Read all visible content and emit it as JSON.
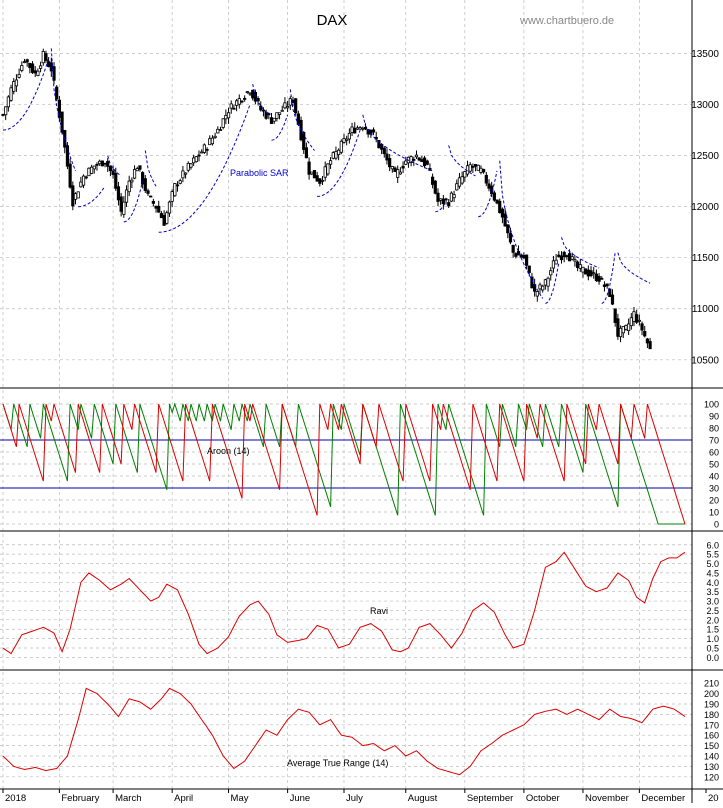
{
  "title": "DAX",
  "watermark": "www.chartbuero.de",
  "colors": {
    "price": "#000000",
    "sar": "#0000cc",
    "aroon_up": "#008000",
    "aroon_down": "#dd0000",
    "aroon_ref": "#0000aa",
    "line": "#dd0000",
    "grid": "#bbbbbb"
  },
  "x_axis": {
    "labels": [
      "2018",
      "February",
      "March",
      "April",
      "May",
      "June",
      "July",
      "August",
      "September",
      "October",
      "November",
      "December",
      "20"
    ]
  },
  "chart_data": [
    {
      "type": "candlestick",
      "name": "price",
      "ylim": [
        10400,
        13750
      ],
      "yticks": [
        10500,
        11000,
        11500,
        12000,
        12500,
        13000,
        13500
      ],
      "ytick_labels": [
        "10500",
        "11000",
        "11500",
        "12000",
        "12500",
        "13000",
        "13500"
      ],
      "annotation": "Parabolic SAR",
      "grid": true,
      "close_anchors": [
        [
          0,
          12900
        ],
        [
          3,
          13150
        ],
        [
          8,
          13450
        ],
        [
          12,
          13300
        ],
        [
          15,
          13480
        ],
        [
          18,
          13350
        ],
        [
          22,
          12750
        ],
        [
          26,
          12050
        ],
        [
          30,
          12300
        ],
        [
          34,
          12400
        ],
        [
          38,
          12450
        ],
        [
          41,
          12300
        ],
        [
          44,
          11950
        ],
        [
          47,
          12250
        ],
        [
          50,
          12400
        ],
        [
          54,
          12100
        ],
        [
          57,
          12000
        ],
        [
          60,
          11850
        ],
        [
          64,
          12200
        ],
        [
          68,
          12350
        ],
        [
          72,
          12480
        ],
        [
          76,
          12600
        ],
        [
          80,
          12750
        ],
        [
          84,
          12950
        ],
        [
          88,
          13050
        ],
        [
          92,
          13150
        ],
        [
          96,
          12950
        ],
        [
          100,
          12850
        ],
        [
          104,
          12950
        ],
        [
          108,
          13050
        ],
        [
          111,
          12700
        ],
        [
          114,
          12350
        ],
        [
          118,
          12250
        ],
        [
          122,
          12450
        ],
        [
          126,
          12600
        ],
        [
          130,
          12750
        ],
        [
          134,
          12800
        ],
        [
          138,
          12700
        ],
        [
          142,
          12500
        ],
        [
          146,
          12300
        ],
        [
          150,
          12450
        ],
        [
          154,
          12500
        ],
        [
          158,
          12400
        ],
        [
          162,
          12050
        ],
        [
          166,
          12050
        ],
        [
          170,
          12250
        ],
        [
          174,
          12400
        ],
        [
          178,
          12350
        ],
        [
          182,
          12150
        ],
        [
          186,
          11900
        ],
        [
          190,
          11550
        ],
        [
          194,
          11500
        ],
        [
          198,
          11150
        ],
        [
          202,
          11250
        ],
        [
          206,
          11500
        ],
        [
          210,
          11550
        ],
        [
          214,
          11400
        ],
        [
          218,
          11350
        ],
        [
          222,
          11300
        ],
        [
          226,
          11150
        ],
        [
          229,
          10750
        ],
        [
          232,
          10800
        ],
        [
          235,
          10950
        ],
        [
          238,
          10800
        ],
        [
          241,
          10600
        ]
      ],
      "sar_segments": [
        {
          "pos": "below",
          "from": 0,
          "to": 17,
          "start": 12750,
          "end": 13450
        },
        {
          "pos": "above",
          "from": 18,
          "to": 27,
          "start": 13550,
          "end": 12350
        },
        {
          "pos": "below",
          "from": 28,
          "to": 38,
          "start": 12000,
          "end": 12200
        },
        {
          "pos": "above",
          "from": 39,
          "to": 44,
          "start": 12500,
          "end": 12300
        },
        {
          "pos": "below",
          "from": 45,
          "to": 52,
          "start": 11850,
          "end": 12250
        },
        {
          "pos": "above",
          "from": 53,
          "to": 57,
          "start": 12550,
          "end": 12200
        },
        {
          "pos": "below",
          "from": 58,
          "to": 92,
          "start": 11750,
          "end": 13000
        },
        {
          "pos": "above",
          "from": 93,
          "to": 99,
          "start": 13200,
          "end": 12900
        },
        {
          "pos": "below",
          "from": 100,
          "to": 106,
          "start": 12650,
          "end": 12900
        },
        {
          "pos": "above",
          "from": 107,
          "to": 116,
          "start": 13150,
          "end": 12550
        },
        {
          "pos": "below",
          "from": 117,
          "to": 133,
          "start": 12100,
          "end": 12750
        },
        {
          "pos": "above",
          "from": 134,
          "to": 160,
          "start": 12900,
          "end": 12350
        },
        {
          "pos": "below",
          "from": 161,
          "to": 165,
          "start": 11950,
          "end": 12050
        },
        {
          "pos": "above",
          "from": 166,
          "to": 176,
          "start": 12600,
          "end": 12300
        },
        {
          "pos": "below",
          "from": 177,
          "to": 184,
          "start": 11900,
          "end": 12350
        },
        {
          "pos": "above",
          "from": 185,
          "to": 201,
          "start": 12450,
          "end": 11100
        },
        {
          "pos": "below",
          "from": 202,
          "to": 207,
          "start": 11050,
          "end": 11450
        },
        {
          "pos": "above",
          "from": 208,
          "to": 222,
          "start": 11700,
          "end": 11400
        },
        {
          "pos": "below",
          "from": 223,
          "to": 228,
          "start": 11050,
          "end": 11550
        },
        {
          "pos": "above",
          "from": 229,
          "to": 241,
          "start": 11550,
          "end": 11250
        }
      ]
    },
    {
      "type": "line",
      "name": "aroon",
      "label": "Aroon (14)",
      "ylim": [
        0,
        100
      ],
      "yticks": [
        0,
        10,
        20,
        30,
        40,
        50,
        60,
        70,
        80,
        90,
        100
      ],
      "ytick_labels": [
        "0",
        "10",
        "20",
        "30",
        "40",
        "50",
        "60",
        "70",
        "80",
        "90",
        "100"
      ],
      "reference_lines": [
        70,
        30
      ],
      "up_resets": [
        0,
        4,
        10,
        15,
        25,
        29,
        34,
        42,
        51,
        62,
        64,
        67,
        70,
        73,
        76,
        79,
        82,
        86,
        89,
        92,
        98,
        104,
        110,
        123,
        127,
        134,
        148,
        162,
        166,
        180,
        186,
        192,
        196,
        202,
        208,
        217,
        230
      ],
      "down_resets": [
        0,
        6,
        16,
        19,
        28,
        37,
        45,
        49,
        58,
        68,
        78,
        90,
        93,
        104,
        118,
        122,
        126,
        134,
        140,
        150,
        160,
        164,
        175,
        185,
        195,
        200,
        210,
        218,
        222,
        230,
        235,
        240
      ]
    },
    {
      "type": "line",
      "name": "ravi",
      "label": "Ravi",
      "ylim": [
        -0.3,
        6.2
      ],
      "yticks": [
        0.0,
        0.5,
        1.0,
        1.5,
        2.0,
        2.5,
        3.0,
        3.5,
        4.0,
        4.5,
        5.0,
        5.5,
        6.0
      ],
      "ytick_labels": [
        "0.0",
        "0.5",
        "1.0",
        "1.5",
        "2.0",
        "2.5",
        "3.0",
        "3.5",
        "4.0",
        "4.5",
        "5.0",
        "5.5",
        "6.0"
      ],
      "anchors": [
        [
          0,
          0.5
        ],
        [
          3,
          0.2
        ],
        [
          7,
          1.2
        ],
        [
          11,
          1.4
        ],
        [
          15,
          1.6
        ],
        [
          19,
          1.3
        ],
        [
          22,
          0.3
        ],
        [
          25,
          1.5
        ],
        [
          29,
          4.0
        ],
        [
          32,
          4.5
        ],
        [
          36,
          4.1
        ],
        [
          40,
          3.6
        ],
        [
          44,
          3.9
        ],
        [
          47,
          4.2
        ],
        [
          51,
          3.6
        ],
        [
          55,
          3.0
        ],
        [
          58,
          3.2
        ],
        [
          61,
          3.9
        ],
        [
          65,
          3.6
        ],
        [
          69,
          2.3
        ],
        [
          73,
          0.7
        ],
        [
          76,
          0.2
        ],
        [
          80,
          0.5
        ],
        [
          84,
          1.1
        ],
        [
          88,
          2.2
        ],
        [
          92,
          2.8
        ],
        [
          95,
          3.0
        ],
        [
          99,
          2.3
        ],
        [
          102,
          1.2
        ],
        [
          106,
          0.8
        ],
        [
          110,
          0.9
        ],
        [
          113,
          1.0
        ],
        [
          117,
          1.7
        ],
        [
          121,
          1.5
        ],
        [
          125,
          0.5
        ],
        [
          129,
          0.7
        ],
        [
          133,
          1.6
        ],
        [
          137,
          1.8
        ],
        [
          141,
          1.4
        ],
        [
          145,
          0.4
        ],
        [
          148,
          0.3
        ],
        [
          151,
          0.5
        ],
        [
          155,
          1.6
        ],
        [
          159,
          1.8
        ],
        [
          163,
          1.2
        ],
        [
          167,
          0.5
        ],
        [
          171,
          1.3
        ],
        [
          175,
          2.5
        ],
        [
          179,
          2.9
        ],
        [
          183,
          2.4
        ],
        [
          187,
          1.2
        ],
        [
          190,
          0.5
        ],
        [
          194,
          0.7
        ],
        [
          198,
          2.5
        ],
        [
          202,
          4.8
        ],
        [
          206,
          5.1
        ],
        [
          209,
          5.6
        ],
        [
          213,
          4.7
        ],
        [
          217,
          3.8
        ],
        [
          221,
          3.5
        ],
        [
          225,
          3.7
        ],
        [
          229,
          4.5
        ],
        [
          233,
          4.1
        ],
        [
          236,
          3.2
        ],
        [
          239,
          2.9
        ],
        [
          242,
          4.2
        ],
        [
          245,
          5.1
        ],
        [
          248,
          5.3
        ],
        [
          251,
          5.3
        ],
        [
          254,
          5.6
        ]
      ]
    },
    {
      "type": "line",
      "name": "atr",
      "label": "Average True Range (14)",
      "ylim": [
        115,
        215
      ],
      "yticks": [
        120,
        130,
        140,
        150,
        160,
        170,
        180,
        190,
        200,
        210
      ],
      "ytick_labels": [
        "120",
        "130",
        "140",
        "150",
        "160",
        "170",
        "180",
        "190",
        "200",
        "210"
      ],
      "anchors": [
        [
          0,
          140
        ],
        [
          4,
          130
        ],
        [
          8,
          127
        ],
        [
          12,
          129
        ],
        [
          16,
          126
        ],
        [
          20,
          128
        ],
        [
          24,
          140
        ],
        [
          28,
          175
        ],
        [
          31,
          205
        ],
        [
          35,
          200
        ],
        [
          39,
          190
        ],
        [
          43,
          178
        ],
        [
          47,
          195
        ],
        [
          51,
          192
        ],
        [
          55,
          185
        ],
        [
          59,
          195
        ],
        [
          62,
          205
        ],
        [
          66,
          200
        ],
        [
          70,
          190
        ],
        [
          74,
          175
        ],
        [
          78,
          160
        ],
        [
          82,
          140
        ],
        [
          86,
          128
        ],
        [
          90,
          135
        ],
        [
          94,
          150
        ],
        [
          98,
          165
        ],
        [
          102,
          160
        ],
        [
          106,
          175
        ],
        [
          110,
          185
        ],
        [
          114,
          182
        ],
        [
          118,
          170
        ],
        [
          122,
          175
        ],
        [
          126,
          160
        ],
        [
          130,
          158
        ],
        [
          134,
          150
        ],
        [
          138,
          152
        ],
        [
          142,
          145
        ],
        [
          146,
          150
        ],
        [
          150,
          140
        ],
        [
          154,
          145
        ],
        [
          158,
          135
        ],
        [
          162,
          128
        ],
        [
          166,
          125
        ],
        [
          170,
          122
        ],
        [
          174,
          130
        ],
        [
          178,
          145
        ],
        [
          182,
          152
        ],
        [
          186,
          160
        ],
        [
          190,
          165
        ],
        [
          194,
          170
        ],
        [
          198,
          180
        ],
        [
          202,
          183
        ],
        [
          206,
          185
        ],
        [
          210,
          180
        ],
        [
          214,
          185
        ],
        [
          218,
          180
        ],
        [
          222,
          175
        ],
        [
          226,
          185
        ],
        [
          230,
          178
        ],
        [
          234,
          176
        ],
        [
          238,
          172
        ],
        [
          242,
          185
        ],
        [
          246,
          188
        ],
        [
          250,
          185
        ],
        [
          254,
          178
        ]
      ]
    }
  ]
}
